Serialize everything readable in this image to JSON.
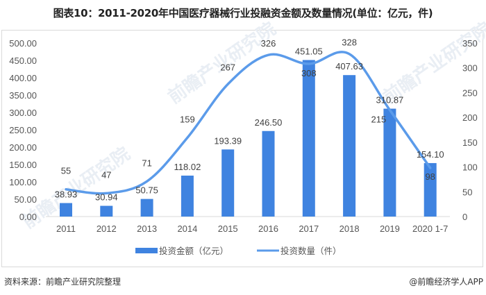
{
  "title": "图表10：2011-2020年中国医疗器械行业投融资金额及数量情况(单位：亿元，件)",
  "footer": {
    "source": "资料来源：前瞻产业研究院整理",
    "credit": "@前瞻经济学人APP"
  },
  "watermark": "前瞻产业研究院",
  "colors": {
    "bar": "#3f83e0",
    "line": "#5b9bea",
    "axis_line": "#d9d9d9",
    "text": "#555555"
  },
  "left_axis_ticks": [
    "0.00",
    "50.00",
    "100.00",
    "150.00",
    "200.00",
    "250.00",
    "300.00",
    "350.00",
    "400.00",
    "450.00",
    "500.00"
  ],
  "right_axis_ticks": [
    "0",
    "50",
    "100",
    "150",
    "200",
    "250",
    "300",
    "350"
  ],
  "legend": {
    "bar_label": "投资金额（亿元）",
    "line_label": "投资数量（件）"
  },
  "chart_data": {
    "type": "bar",
    "title": "图表10：2011-2020年中国医疗器械行业投融资金额及数量情况(单位：亿元，件)",
    "categories": [
      "2011",
      "2012",
      "2013",
      "2014",
      "2015",
      "2016",
      "2017",
      "2018",
      "2019",
      "2020 1-7"
    ],
    "series": [
      {
        "name": "投资金额（亿元）",
        "type": "bar",
        "axis": "left",
        "values": [
          38.93,
          30.94,
          50.75,
          118.02,
          193.39,
          246.5,
          451.05,
          407.63,
          310.87,
          154.1
        ],
        "labels": [
          "38.93",
          "30.94",
          "50.75",
          "118.02",
          "193.39",
          "246.50",
          "451.05",
          "407.63",
          "310.87",
          "154.10"
        ]
      },
      {
        "name": "投资数量（件）",
        "type": "line",
        "axis": "right",
        "smooth": true,
        "values": [
          55,
          47,
          71,
          159,
          267,
          326,
          308,
          328,
          215,
          98
        ],
        "labels": [
          "55",
          "47",
          "71",
          "159",
          "267",
          "326",
          "308",
          "328",
          "215",
          "98"
        ]
      }
    ],
    "xlabel": "",
    "ylabel": "",
    "ylim": [
      0,
      500
    ],
    "y2lim": [
      0,
      350
    ],
    "y_ticks": [
      0,
      50,
      100,
      150,
      200,
      250,
      300,
      350,
      400,
      450,
      500
    ],
    "y2_ticks": [
      0,
      50,
      100,
      150,
      200,
      250,
      300,
      350
    ],
    "grid": false,
    "legend_position": "bottom"
  }
}
